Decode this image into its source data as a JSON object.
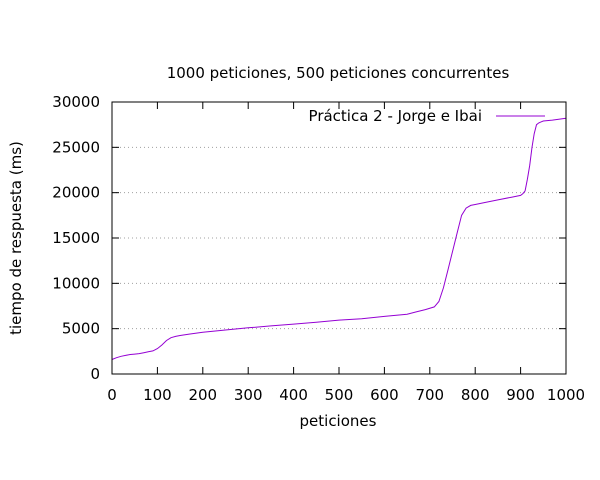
{
  "chart_data": {
    "type": "line",
    "title": "1000 peticiones, 500 peticiones concurrentes",
    "xlabel": "peticiones",
    "ylabel": "tiempo de respuesta (ms)",
    "xlim": [
      0,
      1000
    ],
    "ylim": [
      0,
      30000
    ],
    "xticks": [
      0,
      100,
      200,
      300,
      400,
      500,
      600,
      700,
      800,
      900,
      1000
    ],
    "yticks": [
      0,
      5000,
      10000,
      15000,
      20000,
      25000,
      30000
    ],
    "grid": "horizontal-dotted",
    "legend_position": "top-right",
    "series": [
      {
        "name": "Práctica 2 - Jorge e Ibai",
        "color": "#9400d3",
        "x": [
          0,
          10,
          20,
          30,
          40,
          50,
          60,
          70,
          80,
          90,
          100,
          110,
          120,
          130,
          140,
          150,
          170,
          200,
          250,
          300,
          350,
          400,
          450,
          500,
          550,
          600,
          650,
          670,
          690,
          710,
          720,
          730,
          740,
          750,
          760,
          770,
          780,
          790,
          800,
          820,
          850,
          880,
          900,
          905,
          910,
          915,
          920,
          925,
          930,
          935,
          940,
          945,
          950,
          970,
          1000
        ],
        "y": [
          1600,
          1800,
          1950,
          2050,
          2150,
          2200,
          2250,
          2350,
          2450,
          2550,
          2800,
          3200,
          3700,
          4000,
          4150,
          4250,
          4400,
          4600,
          4850,
          5100,
          5300,
          5500,
          5700,
          5950,
          6100,
          6350,
          6600,
          6850,
          7100,
          7400,
          8000,
          9500,
          11500,
          13500,
          15500,
          17500,
          18300,
          18600,
          18700,
          18900,
          19200,
          19500,
          19700,
          19900,
          20200,
          21500,
          23000,
          25000,
          26500,
          27500,
          27700,
          27800,
          27900,
          28000,
          28200
        ]
      }
    ]
  }
}
